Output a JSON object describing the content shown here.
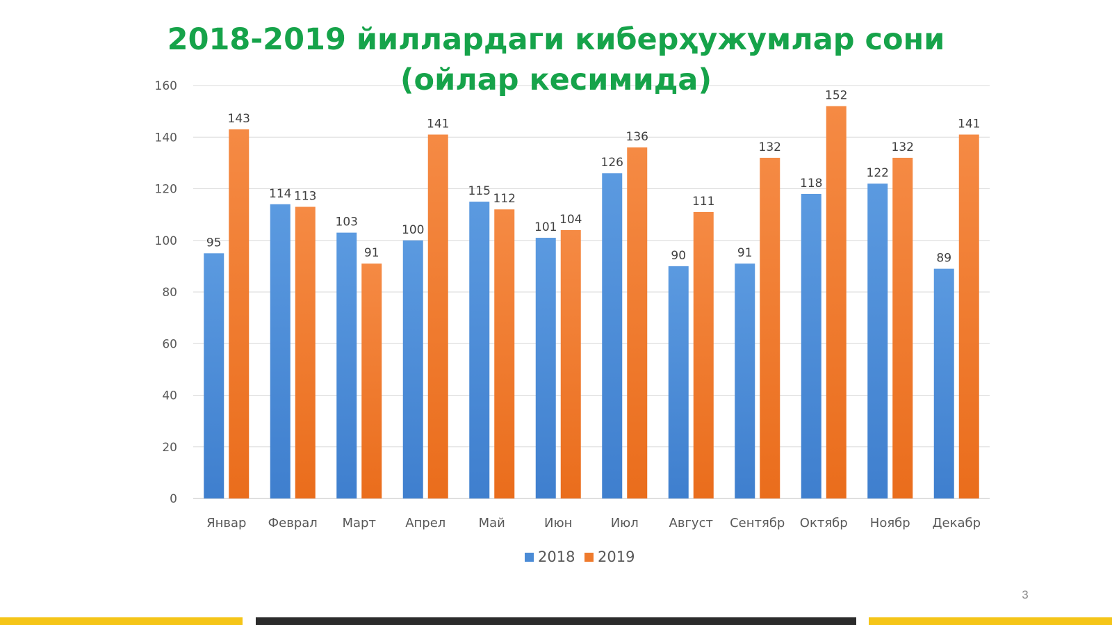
{
  "slide": {
    "title": "2018-2019 йиллардаги киберҳужумлар сони (ойлар кесимида)",
    "page_number": "3"
  },
  "colors": {
    "title": "#16a34a",
    "series_2018": "#4a8bd6",
    "series_2019": "#ef7a2c",
    "gridline": "#d9d9d9",
    "footer_yellow": "#f5c518",
    "footer_dark": "#2b2b2b"
  },
  "chart_data": {
    "type": "bar",
    "title": "2018-2019 йиллардаги киберҳужумлар сони (ойлар кесимида)",
    "xlabel": "",
    "ylabel": "",
    "categories": [
      "Январ",
      "Феврал",
      "Март",
      "Апрел",
      "Май",
      "Июн",
      "Июл",
      "Август",
      "Сентябр",
      "Октябр",
      "Ноябр",
      "Декабр"
    ],
    "series": [
      {
        "name": "2018",
        "values": [
          95,
          114,
          103,
          100,
          115,
          101,
          126,
          90,
          91,
          118,
          122,
          89
        ]
      },
      {
        "name": "2019",
        "values": [
          143,
          113,
          91,
          141,
          112,
          104,
          136,
          111,
          132,
          152,
          132,
          141
        ]
      }
    ],
    "ylim": [
      0,
      160
    ],
    "yticks": [
      0,
      20,
      40,
      60,
      80,
      100,
      120,
      140,
      160
    ],
    "grid": true,
    "data_labels": true,
    "legend": "bottom"
  }
}
